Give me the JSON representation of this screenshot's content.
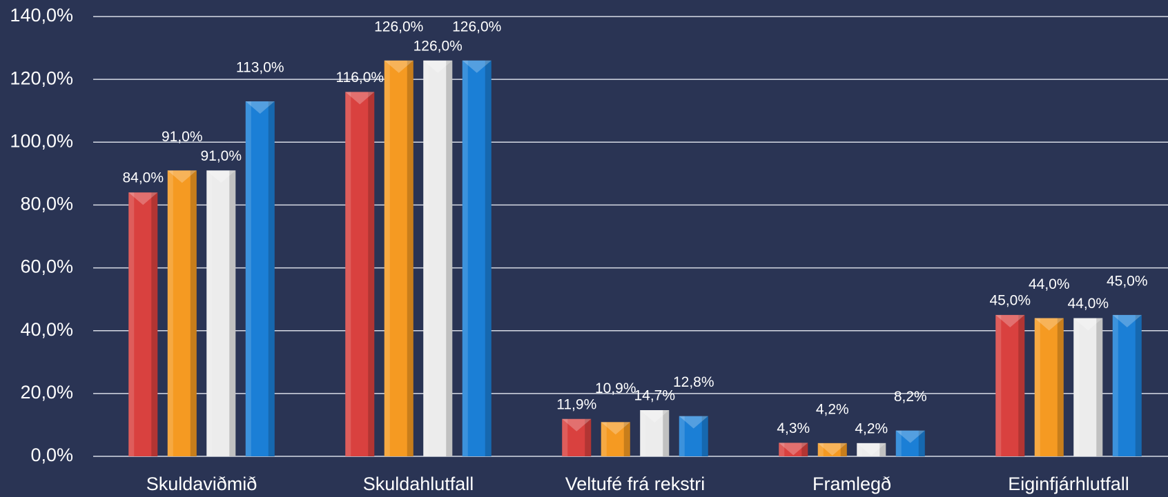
{
  "chart_data": {
    "type": "bar",
    "categories": [
      "Skuldaviðmið",
      "Skuldahlutfall",
      "Veltufé frá rekstri",
      "Framlegð",
      "Eiginfjárhlutfall"
    ],
    "series": [
      {
        "color": "#d9413f",
        "values": [
          84,
          116,
          11.9,
          4.3,
          45
        ],
        "value_labels": [
          "84,0%",
          "116,0%",
          "11,9%",
          "4,3%",
          "45,0%"
        ]
      },
      {
        "color": "#f59a22",
        "values": [
          91,
          126,
          10.9,
          4.2,
          44
        ],
        "value_labels": [
          "91,0%",
          "126,0%",
          "10,9%",
          "4,2%",
          "44,0%"
        ]
      },
      {
        "color": "#ececec",
        "values": [
          91,
          126,
          14.7,
          4.2,
          44
        ],
        "value_labels": [
          "91,0%",
          "126,0%",
          "14,7%",
          "4,2%",
          "44,0%"
        ]
      },
      {
        "color": "#1b7fd6",
        "values": [
          113,
          126,
          12.8,
          8.2,
          45
        ],
        "value_labels": [
          "113,0%",
          "126,0%",
          "12,8%",
          "8,2%",
          "45,0%"
        ]
      }
    ],
    "ylim": [
      0,
      140
    ],
    "yticks": [
      {
        "value": 0,
        "label": "0,0%"
      },
      {
        "value": 20,
        "label": "20,0%"
      },
      {
        "value": 40,
        "label": "40,0%"
      },
      {
        "value": 60,
        "label": "60,0%"
      },
      {
        "value": 80,
        "label": "80,0%"
      },
      {
        "value": 100,
        "label": "100,0%"
      },
      {
        "value": 120,
        "label": "120,0%"
      },
      {
        "value": 140,
        "label": "140,0%"
      }
    ],
    "grid": true
  }
}
